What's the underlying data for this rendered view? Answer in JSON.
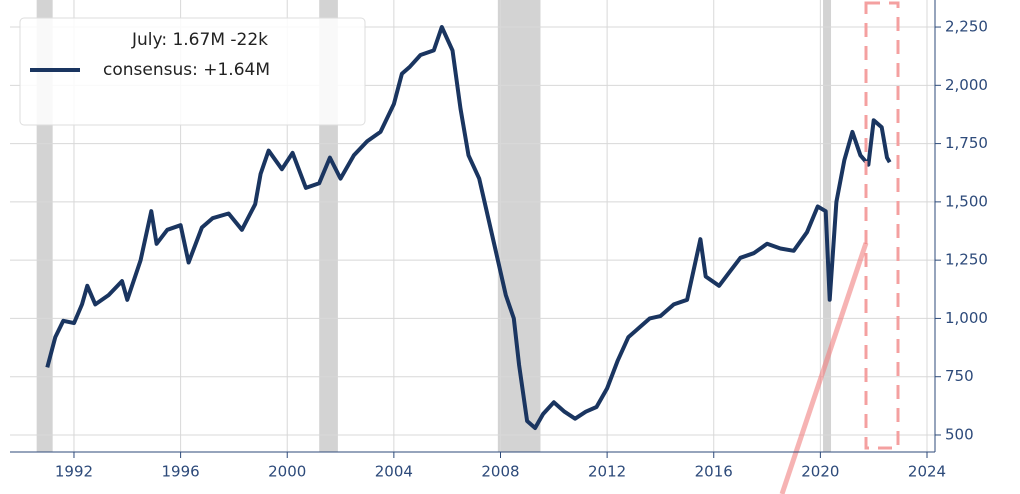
{
  "chart_data": {
    "type": "line",
    "legend_title": "July: 1.67M -22k",
    "series": [
      {
        "name": "consensus: +1.64M",
        "color": "#1a3560",
        "x": [
          1991.0,
          1991.3,
          1991.6,
          1992.0,
          1992.3,
          1992.5,
          1992.8,
          1993.3,
          1993.8,
          1994.0,
          1994.5,
          1994.9,
          1995.1,
          1995.5,
          1996.0,
          1996.3,
          1996.8,
          1997.2,
          1997.8,
          1998.3,
          1998.8,
          1999.0,
          1999.3,
          1999.8,
          2000.2,
          2000.7,
          2001.2,
          2001.6,
          2002.0,
          2002.5,
          2003.0,
          2003.5,
          2004.0,
          2004.3,
          2004.6,
          2005.0,
          2005.5,
          2005.8,
          2006.2,
          2006.5,
          2006.8,
          2007.2,
          2007.5,
          2007.8,
          2008.2,
          2008.5,
          2008.7,
          2009.0,
          2009.3,
          2009.6,
          2010.0,
          2010.4,
          2010.8,
          2011.2,
          2011.6,
          2012.0,
          2012.4,
          2012.8,
          2013.2,
          2013.6,
          2014.0,
          2014.5,
          2015.0,
          2015.5,
          2015.7,
          2016.2,
          2016.6,
          2017.0,
          2017.5,
          2018.0,
          2018.5,
          2019.0,
          2019.5,
          2019.9,
          2020.2,
          2020.35,
          2020.6,
          2020.9,
          2021.2,
          2021.5,
          2021.8,
          2022.0,
          2022.3,
          2022.5,
          2022.6
        ],
        "values": [
          790,
          920,
          990,
          980,
          1060,
          1140,
          1060,
          1100,
          1160,
          1080,
          1250,
          1460,
          1320,
          1380,
          1400,
          1240,
          1390,
          1430,
          1450,
          1380,
          1490,
          1620,
          1720,
          1640,
          1710,
          1560,
          1580,
          1690,
          1600,
          1700,
          1760,
          1800,
          1920,
          2050,
          2080,
          2130,
          2150,
          2250,
          2150,
          1900,
          1700,
          1600,
          1450,
          1300,
          1100,
          1000,
          800,
          560,
          530,
          590,
          640,
          600,
          570,
          600,
          620,
          700,
          820,
          920,
          960,
          1000,
          1010,
          1060,
          1080,
          1340,
          1180,
          1140,
          1200,
          1260,
          1280,
          1320,
          1300,
          1290,
          1370,
          1480,
          1460,
          1080,
          1500,
          1680,
          1800,
          1700,
          1660,
          1850,
          1820,
          1690,
          1670
        ]
      }
    ],
    "recessions": [
      [
        1990.6,
        1991.2
      ],
      [
        2001.2,
        2001.9
      ],
      [
        2007.9,
        2009.5
      ],
      [
        2020.1,
        2020.4
      ]
    ],
    "recession_color": "#d3d3d3",
    "xlim": [
      1989.6,
      2024.3
    ],
    "xticks": [
      1992,
      1996,
      2000,
      2004,
      2008,
      2012,
      2016,
      2020,
      2024
    ],
    "ylim": [
      427,
      2366
    ],
    "yticks": [
      500,
      750,
      {
        "value": 1000,
        "label": "1,000"
      },
      {
        "value": 1250,
        "label": "1,250"
      },
      {
        "value": 1500,
        "label": "1,500"
      },
      {
        "value": 1750,
        "label": "1,750"
      },
      {
        "value": 2000,
        "label": "2,000"
      },
      {
        "value": 2250,
        "label": "2,250"
      }
    ],
    "grid": true,
    "legend": "upper left"
  }
}
